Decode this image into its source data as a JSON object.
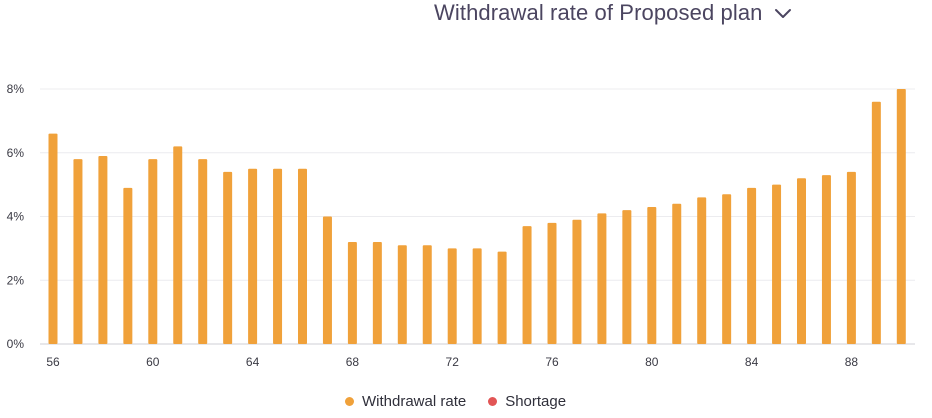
{
  "header": {
    "title": "Withdrawal rate of Proposed plan",
    "dropdown_icon": "chevron-down-icon"
  },
  "legend": {
    "items": [
      {
        "label": "Withdrawal rate",
        "color": "#f0a13a"
      },
      {
        "label": "Shortage",
        "color": "#e25555"
      }
    ]
  },
  "colors": {
    "bar": "#f0a13a",
    "grid": "#ececef",
    "axis_text": "#3a3a44",
    "title": "#4b4560"
  },
  "chart_data": {
    "type": "bar",
    "title": "Withdrawal rate of Proposed plan",
    "xlabel": "",
    "ylabel": "",
    "x": [
      56,
      57,
      58,
      59,
      60,
      61,
      62,
      63,
      64,
      65,
      66,
      67,
      68,
      69,
      70,
      71,
      72,
      73,
      74,
      75,
      76,
      77,
      78,
      79,
      80,
      81,
      82,
      83,
      84,
      85,
      86,
      87,
      88,
      89,
      90
    ],
    "series": [
      {
        "name": "Withdrawal rate",
        "values": [
          6.6,
          5.8,
          5.9,
          4.9,
          5.8,
          6.2,
          5.8,
          5.4,
          5.5,
          5.5,
          5.5,
          4.0,
          3.2,
          3.2,
          3.1,
          3.1,
          3.0,
          3.0,
          2.9,
          3.7,
          3.8,
          3.9,
          4.1,
          4.2,
          4.3,
          4.4,
          4.6,
          4.7,
          4.9,
          5.0,
          5.2,
          5.3,
          5.4,
          7.6,
          8.0
        ]
      }
    ],
    "ylim": [
      0,
      8
    ],
    "yticks": [
      0,
      2,
      4,
      6,
      8
    ],
    "ytick_labels": [
      "0%",
      "2%",
      "4%",
      "6%",
      "8%"
    ],
    "xticks": [
      56,
      60,
      64,
      68,
      72,
      76,
      80,
      84,
      88
    ],
    "xtick_labels": [
      "56",
      "60",
      "64",
      "68",
      "72",
      "76",
      "80",
      "84",
      "88"
    ],
    "grid": true,
    "legend_position": "bottom-center"
  }
}
